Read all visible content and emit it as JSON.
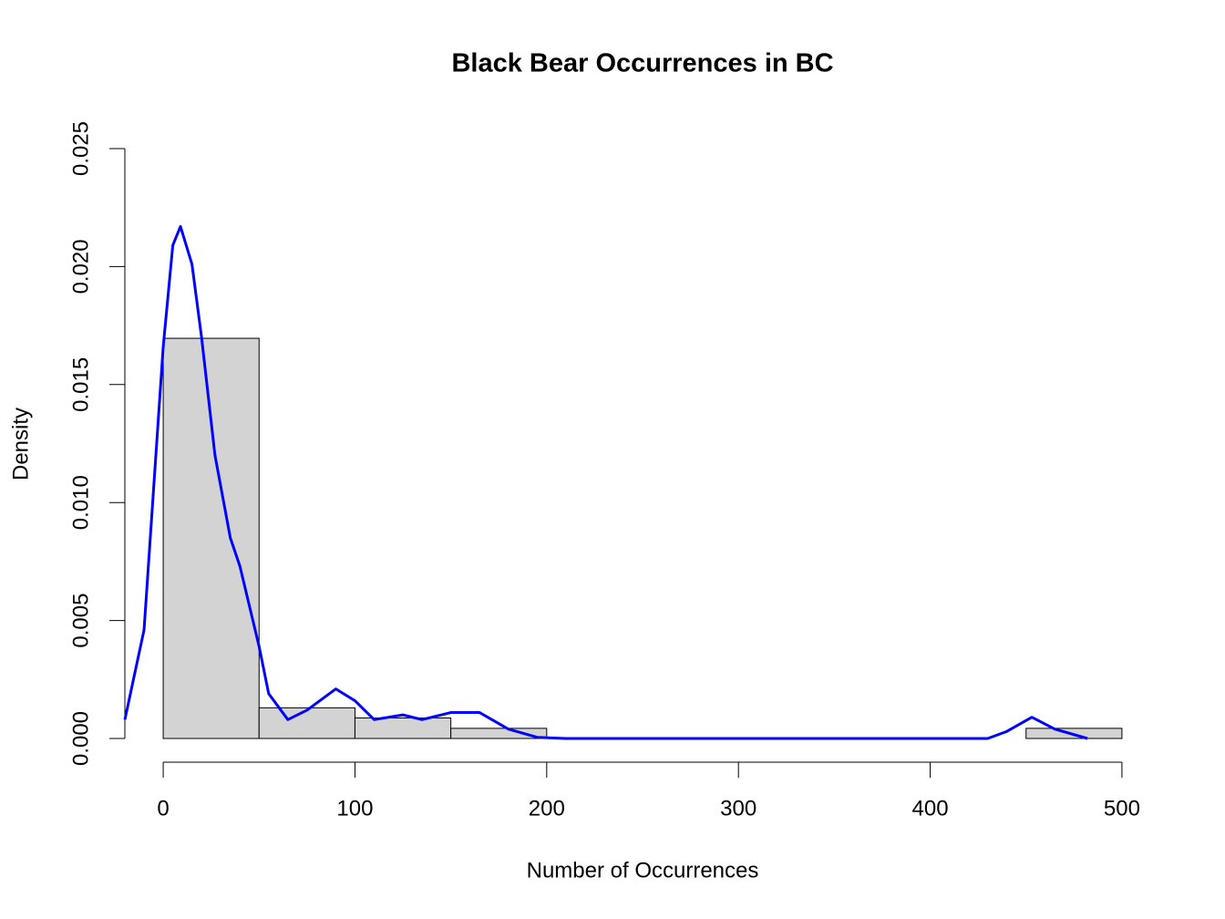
{
  "chart_data": {
    "type": "histogram",
    "title": "Black Bear Occurrences in BC",
    "x_label": "Number of Occurrences",
    "y_label": "Density",
    "bins": [
      0,
      50,
      100,
      150,
      200,
      250,
      300,
      350,
      400,
      450,
      500
    ],
    "values": [
      0.01696,
      0.0013,
      0.00087,
      0.00043,
      0,
      0,
      0,
      0,
      0,
      0.00043
    ],
    "color": "#d3d3d3",
    "density_line": {
      "color": "#0000ff",
      "x": [
        -20,
        -10,
        0,
        5,
        9,
        15,
        20,
        27,
        35,
        40,
        50,
        55,
        65,
        75,
        90,
        100,
        110,
        125,
        135,
        150,
        165,
        180,
        195,
        210,
        430,
        440,
        453,
        465,
        482
      ],
      "values": [
        0.0008,
        0.0046,
        0.0166,
        0.0209,
        0.0217,
        0.0201,
        0.017,
        0.012,
        0.0085,
        0.0073,
        0.0039,
        0.0019,
        0.0008,
        0.0012,
        0.0021,
        0.0016,
        0.0008,
        0.001,
        0.0008,
        0.0011,
        0.0011,
        0.0004,
        5e-05,
        0,
        0,
        0.0003,
        0.0009,
        0.0004,
        0
      ]
    },
    "xlim": [
      -20,
      520
    ],
    "ylim": [
      0,
      0.025
    ],
    "xticks": [
      0,
      100,
      200,
      300,
      400,
      500
    ],
    "yticks": [
      {
        "value": 0,
        "label": "0.000"
      },
      0.005,
      {
        "value": 0.01,
        "label": "0.010"
      },
      0.015,
      {
        "value": 0.02,
        "label": "0.020"
      },
      0.025
    ]
  }
}
